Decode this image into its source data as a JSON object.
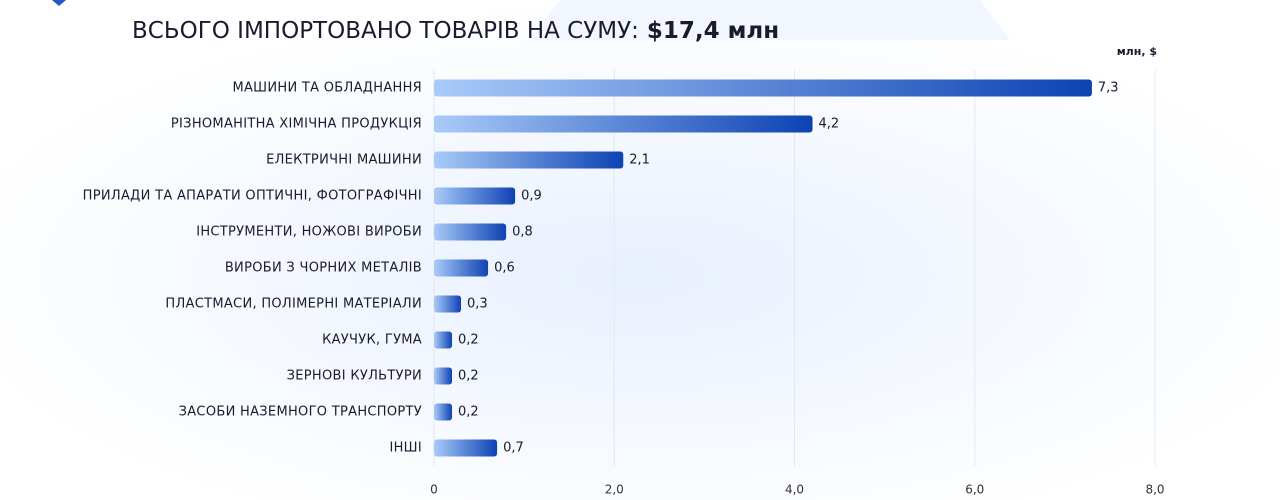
{
  "chart_data": {
    "type": "bar",
    "orientation": "horizontal",
    "title": "ВСЬОГО ІМПОРТОВАНО ТОВАРІВ НА СУМУ:",
    "subtitle": "$17,4 млн",
    "unit_label": "млн, $",
    "categories": [
      "МАШИНИ ТА ОБЛАДНАННЯ",
      "РІЗНОМАНІТНА ХІМІЧНА ПРОДУКЦІЯ",
      "ЕЛЕКТРИЧНІ МАШИНИ",
      "ПРИЛАДИ ТА АПАРАТИ ОПТИЧНІ, ФОТОГРАФІЧНІ",
      "ІНСТРУМЕНТИ, НОЖОВІ ВИРОБИ",
      "ВИРОБИ З ЧОРНИХ МЕТАЛІВ",
      "ПЛАСТМАСИ, ПОЛІМЕРНІ МАТЕРІАЛИ",
      "КАУЧУК, ГУМА",
      "ЗЕРНОВІ КУЛЬТУРИ",
      "ЗАСОБИ НАЗЕМНОГО ТРАНСПОРТУ",
      "ІНШІ"
    ],
    "values": [
      7.3,
      4.2,
      2.1,
      0.9,
      0.8,
      0.6,
      0.3,
      0.2,
      0.2,
      0.2,
      0.7
    ],
    "value_labels": [
      "7,3",
      "4,2",
      "2,1",
      "0,9",
      "0,8",
      "0,6",
      "0,3",
      "0,2",
      "0,2",
      "0,2",
      "0,7"
    ],
    "gradient": [
      "#a9cbf9",
      "#0d42b3"
    ],
    "xlim": [
      0,
      8
    ],
    "xticks": [
      0,
      {
        "value": 2,
        "label": "2,0"
      },
      {
        "value": 4,
        "label": "4,0"
      },
      {
        "value": 6,
        "label": "6,0"
      },
      {
        "value": 8,
        "label": "8,0"
      }
    ],
    "grid": true
  }
}
